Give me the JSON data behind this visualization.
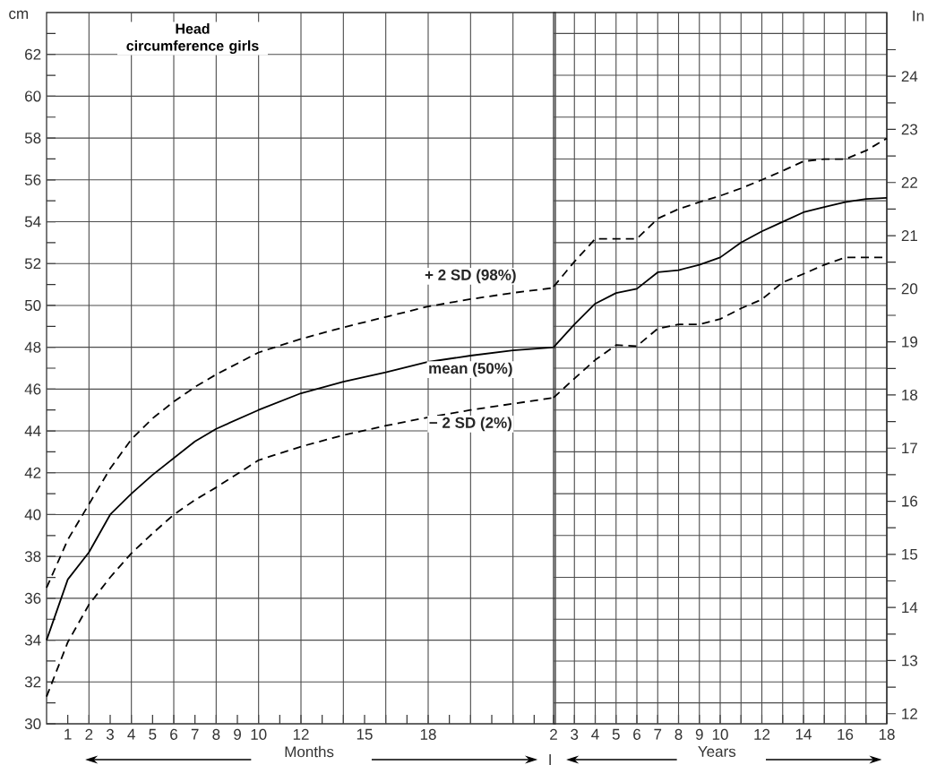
{
  "chart_data": [
    {
      "type": "line",
      "title": "Head circumference girls",
      "xlabel": "Months",
      "ylabel": "cm",
      "xlim": [
        0,
        24
      ],
      "ylim": [
        30,
        64
      ],
      "xticks": [
        1,
        2,
        3,
        4,
        5,
        6,
        7,
        8,
        9,
        10,
        {
          "value": 11,
          "label": null
        },
        12,
        {
          "value": 13,
          "label": null
        },
        {
          "value": 14,
          "label": null
        },
        15,
        {
          "value": 16,
          "label": null
        },
        {
          "value": 17,
          "label": null
        },
        18,
        {
          "value": 19,
          "label": null
        },
        {
          "value": 20,
          "label": null
        },
        {
          "value": 21,
          "label": null
        },
        {
          "value": 22,
          "label": null
        },
        {
          "value": 23,
          "label": null
        }
      ],
      "yticks": [
        30,
        {
          "value": 31,
          "label": null
        },
        32,
        {
          "value": 33,
          "label": null
        },
        34,
        {
          "value": 35,
          "label": null
        },
        36,
        {
          "value": 37,
          "label": null
        },
        38,
        {
          "value": 39,
          "label": null
        },
        40,
        {
          "value": 41,
          "label": null
        },
        42,
        {
          "value": 43,
          "label": null
        },
        44,
        {
          "value": 45,
          "label": null
        },
        46,
        {
          "value": 47,
          "label": null
        },
        48,
        {
          "value": 49,
          "label": null
        },
        50,
        {
          "value": 51,
          "label": null
        },
        52,
        {
          "value": 53,
          "label": null
        },
        54,
        {
          "value": 55,
          "label": null
        },
        56,
        {
          "value": 57,
          "label": null
        },
        58,
        {
          "value": 59,
          "label": null
        },
        60,
        {
          "value": 61,
          "label": null
        },
        62,
        {
          "value": 63,
          "label": null
        }
      ],
      "grid": true,
      "x": [
        0,
        1,
        2,
        3,
        4,
        5,
        6,
        7,
        8,
        10,
        12,
        14,
        16,
        18,
        20,
        22,
        24
      ],
      "series": [
        {
          "name": "+ 2 SD (98%)",
          "color": "#000000",
          "line_style": "dashed",
          "values": [
            36.5,
            38.8,
            40.5,
            42.2,
            43.6,
            44.6,
            45.4,
            46.1,
            46.7,
            47.75,
            48.4,
            48.95,
            49.45,
            49.95,
            50.3,
            50.6,
            50.85
          ]
        },
        {
          "name": "mean (50%)",
          "color": "#000000",
          "line_style": "solid",
          "values": [
            34,
            36.9,
            38.2,
            40,
            41,
            41.9,
            42.7,
            43.5,
            44.1,
            45.0,
            45.8,
            46.35,
            46.8,
            47.3,
            47.6,
            47.85,
            48
          ]
        },
        {
          "name": "− 2 SD (2%)",
          "color": "#000000",
          "line_style": "dashed",
          "values": [
            31.3,
            33.9,
            35.7,
            37.0,
            38.15,
            39.1,
            40.0,
            40.7,
            41.3,
            42.6,
            43.25,
            43.8,
            44.25,
            44.65,
            45.0,
            45.3,
            45.6
          ]
        }
      ]
    },
    {
      "type": "line",
      "xlabel": "Years",
      "y2label": "In",
      "xlim": [
        2,
        18
      ],
      "xticks": [
        2,
        3,
        4,
        5,
        6,
        7,
        8,
        9,
        10,
        {
          "value": 11,
          "label": null
        },
        12,
        {
          "value": 13,
          "label": null
        },
        14,
        {
          "value": 15,
          "label": null
        },
        16,
        {
          "value": 17,
          "label": null
        },
        18
      ],
      "y2lim": [
        11.81,
        25.2
      ],
      "y2ticks": [
        12,
        {
          "value": 12.5,
          "label": null
        },
        13,
        {
          "value": 13.5,
          "label": null
        },
        14,
        {
          "value": 14.5,
          "label": null
        },
        15,
        {
          "value": 15.5,
          "label": null
        },
        16,
        {
          "value": 16.5,
          "label": null
        },
        17,
        {
          "value": 17.5,
          "label": null
        },
        18,
        {
          "value": 18.5,
          "label": null
        },
        19,
        {
          "value": 19.5,
          "label": null
        },
        20,
        {
          "value": 20.5,
          "label": null
        },
        21,
        {
          "value": 21.5,
          "label": null
        },
        22,
        {
          "value": 22.5,
          "label": null
        },
        23,
        {
          "value": 23.5,
          "label": null
        },
        24,
        {
          "value": 24.5,
          "label": null
        }
      ],
      "grid": true,
      "x": [
        2,
        3,
        4,
        5,
        6,
        7,
        8,
        9,
        10,
        11,
        12,
        13,
        14,
        15,
        16,
        17,
        18
      ],
      "series": [
        {
          "color": "#000000",
          "line_style": "dashed",
          "axis": "y2",
          "values": [
            20.04,
            20.51,
            20.94,
            20.94,
            20.94,
            21.32,
            21.5,
            21.63,
            21.75,
            21.89,
            22.05,
            22.22,
            22.4,
            22.44,
            22.44,
            22.6,
            22.83
          ]
        },
        {
          "color": "#000000",
          "line_style": "solid",
          "axis": "y2",
          "values": [
            18.9,
            19.33,
            19.72,
            19.92,
            20.0,
            20.31,
            20.35,
            20.45,
            20.59,
            20.87,
            21.08,
            21.26,
            21.44,
            21.54,
            21.63,
            21.69,
            21.71
          ]
        },
        {
          "color": "#000000",
          "line_style": "dashed",
          "axis": "y2",
          "values": [
            17.95,
            18.31,
            18.66,
            18.94,
            18.92,
            19.25,
            19.33,
            19.33,
            19.43,
            19.63,
            19.8,
            20.12,
            20.28,
            20.45,
            20.59,
            20.59,
            20.59
          ]
        }
      ]
    }
  ]
}
